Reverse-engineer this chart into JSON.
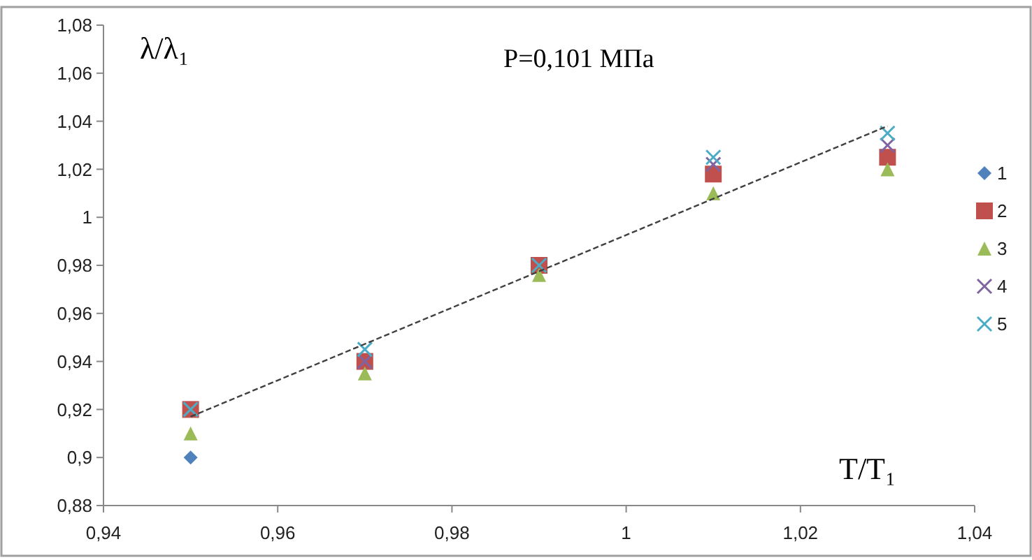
{
  "chart_data": {
    "type": "scatter",
    "title": "P=0,101 МПа",
    "xlabel": "T/T₁",
    "ylabel": "λ/λ₁",
    "x": [
      0.95,
      0.97,
      0.99,
      1.01,
      1.03
    ],
    "series": [
      {
        "name": "1",
        "color": "#4f81bd",
        "marker": "diamond",
        "values": [
          0.9,
          null,
          null,
          null,
          null
        ]
      },
      {
        "name": "2",
        "color": "#c0504d",
        "marker": "square",
        "values": [
          0.92,
          0.94,
          0.98,
          1.018,
          1.025
        ]
      },
      {
        "name": "3",
        "color": "#9bbb59",
        "marker": "triangle",
        "values": [
          0.91,
          0.935,
          0.976,
          1.01,
          1.02
        ]
      },
      {
        "name": "4",
        "color": "#8064a2",
        "marker": "cross",
        "values": [
          null,
          0.94,
          null,
          1.022,
          1.03
        ]
      },
      {
        "name": "5",
        "color": "#4bacc6",
        "marker": "cross",
        "values": [
          0.92,
          0.945,
          0.98,
          1.025,
          1.035
        ]
      },
      {
        "type": "line",
        "color": "#404040",
        "line_style": "dashed",
        "marker": "none",
        "x": [
          0.95,
          1.03
        ],
        "values": [
          0.917,
          1.038
        ]
      }
    ],
    "xlim": [
      0.94,
      1.04
    ],
    "xticks": [
      {
        "value": 0.94,
        "label": "0,94"
      },
      {
        "value": 0.96,
        "label": "0,96"
      },
      {
        "value": 0.98,
        "label": "0,98"
      },
      1,
      {
        "value": 1.02,
        "label": "1,02"
      },
      {
        "value": 1.04,
        "label": "1,04"
      }
    ],
    "ylim": [
      0.88,
      1.08
    ],
    "yticks": [
      {
        "value": 0.88,
        "label": "0,88"
      },
      {
        "value": 0.9,
        "label": "0,9"
      },
      {
        "value": 0.92,
        "label": "0,92"
      },
      {
        "value": 0.94,
        "label": "0,94"
      },
      {
        "value": 0.96,
        "label": "0,96"
      },
      {
        "value": 0.98,
        "label": "0,98"
      },
      1,
      {
        "value": 1.02,
        "label": "1,02"
      },
      {
        "value": 1.04,
        "label": "1,04"
      },
      {
        "value": 1.06,
        "label": "1,06"
      },
      {
        "value": 1.08,
        "label": "1,08"
      }
    ],
    "legend": "right",
    "grid": false
  }
}
